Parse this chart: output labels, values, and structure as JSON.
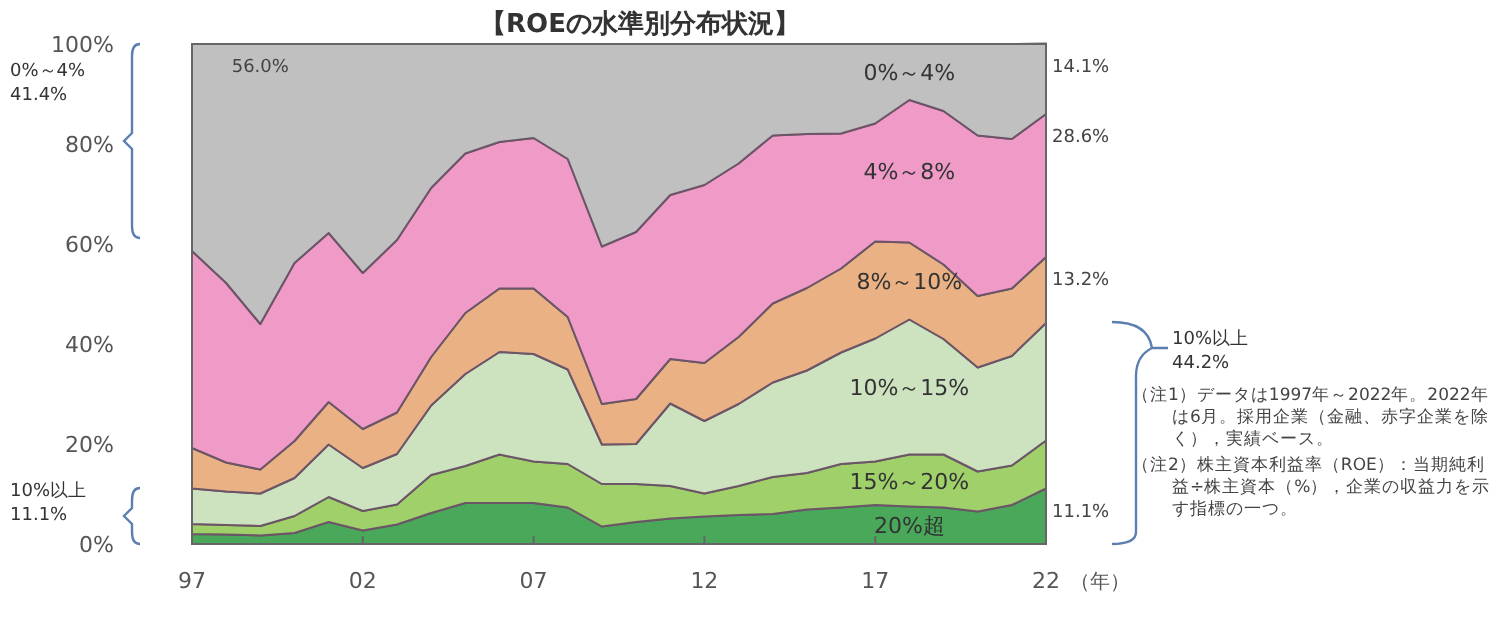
{
  "chart_data": {
    "type": "area",
    "stacked": true,
    "title": "【ROEの水準別分布状況】",
    "xlabel": "（年）",
    "x": [
      1997,
      1998,
      1999,
      2000,
      2001,
      2002,
      2003,
      2004,
      2005,
      2006,
      2007,
      2008,
      2009,
      2010,
      2011,
      2012,
      2013,
      2014,
      2015,
      2016,
      2017,
      2018,
      2019,
      2020,
      2021,
      2022
    ],
    "xlim": [
      1997,
      2022
    ],
    "xticks": [
      {
        "value": 1997,
        "label": "97"
      },
      {
        "value": 2002,
        "label": "02"
      },
      {
        "value": 2007,
        "label": "07"
      },
      {
        "value": 2012,
        "label": "12"
      },
      {
        "value": 2017,
        "label": "17"
      },
      {
        "value": 2022,
        "label": "22"
      }
    ],
    "ylim": [
      0,
      100
    ],
    "yticks": [
      {
        "value": 0,
        "label": "0%"
      },
      {
        "value": 20,
        "label": "20%"
      },
      {
        "value": 40,
        "label": "40%"
      },
      {
        "value": 60,
        "label": "60%"
      },
      {
        "value": 80,
        "label": "80%"
      },
      {
        "value": 100,
        "label": "100%"
      }
    ],
    "series": [
      {
        "name": "20%超",
        "color": "#4aa85a",
        "values": [
          2.0,
          1.9,
          1.7,
          2.2,
          4.4,
          2.7,
          3.9,
          6.2,
          8.2,
          8.2,
          8.2,
          7.3,
          3.5,
          4.4,
          5.1,
          5.5,
          5.8,
          6.0,
          6.9,
          7.3,
          7.8,
          7.5,
          7.3,
          6.5,
          7.8,
          11.1
        ],
        "value_labels": [
          null,
          null,
          null,
          null,
          null,
          null,
          null,
          null,
          null,
          null,
          null,
          null,
          null,
          null,
          null,
          null,
          null,
          null,
          null,
          null,
          null,
          null,
          null,
          null,
          null,
          "11.1%"
        ]
      },
      {
        "name": "15%～20%",
        "color": "#9fd06a",
        "values": [
          2.0,
          1.9,
          1.9,
          3.4,
          5.0,
          3.9,
          4.0,
          7.6,
          7.4,
          9.7,
          8.3,
          8.7,
          8.5,
          7.6,
          6.5,
          4.6,
          5.8,
          7.4,
          7.3,
          8.7,
          8.7,
          10.4,
          10.6,
          8.0,
          7.9,
          9.6
        ]
      },
      {
        "name": "10%～15%",
        "color": "#cde3c0",
        "values": [
          7.1,
          6.7,
          6.5,
          7.6,
          10.5,
          8.6,
          10.1,
          13.9,
          18.4,
          20.5,
          21.5,
          18.9,
          7.9,
          8.0,
          16.5,
          14.5,
          16.4,
          18.9,
          20.5,
          22.3,
          24.6,
          27.0,
          23.1,
          20.8,
          21.9,
          23.5
        ]
      },
      {
        "name": "8%～10%",
        "color": "#eab184",
        "values": [
          8.1,
          5.8,
          4.8,
          7.4,
          8.5,
          7.8,
          8.3,
          9.7,
          12.2,
          12.7,
          13.1,
          10.5,
          8.1,
          9.0,
          8.9,
          11.6,
          13.4,
          15.8,
          16.5,
          16.8,
          19.4,
          15.4,
          14.9,
          14.3,
          13.5,
          13.2
        ],
        "value_labels": [
          null,
          null,
          null,
          null,
          null,
          null,
          null,
          null,
          null,
          null,
          null,
          null,
          null,
          null,
          null,
          null,
          null,
          null,
          null,
          null,
          null,
          null,
          null,
          null,
          null,
          "13.2%"
        ]
      },
      {
        "name": "4%～8%",
        "color": "#f09ac8",
        "values": [
          39.4,
          35.9,
          29.1,
          35.6,
          33.8,
          31.2,
          34.5,
          33.8,
          31.9,
          29.3,
          30.1,
          31.6,
          31.5,
          33.4,
          32.8,
          35.6,
          34.7,
          33.6,
          30.8,
          27.0,
          23.6,
          28.5,
          30.7,
          32.1,
          29.9,
          28.6
        ],
        "value_labels": [
          null,
          null,
          null,
          null,
          null,
          null,
          null,
          null,
          null,
          null,
          null,
          null,
          null,
          null,
          null,
          null,
          null,
          null,
          null,
          null,
          null,
          null,
          null,
          null,
          null,
          "28.6%"
        ]
      },
      {
        "name": "0%～4%",
        "color": "#c0c0c0",
        "values": [
          41.4,
          47.8,
          56.0,
          43.8,
          37.8,
          45.8,
          39.2,
          28.8,
          21.9,
          19.6,
          18.8,
          23.0,
          40.5,
          37.6,
          30.2,
          28.2,
          23.9,
          18.3,
          18.0,
          17.9,
          15.9,
          11.2,
          13.4,
          18.3,
          19.0,
          14.1
        ],
        "value_labels": [
          null,
          null,
          "56.0%",
          null,
          null,
          null,
          null,
          null,
          null,
          null,
          null,
          null,
          null,
          null,
          null,
          null,
          null,
          null,
          null,
          null,
          null,
          null,
          null,
          null,
          null,
          "14.1%"
        ]
      }
    ],
    "annotations": [
      "0%～4%\n41.4%",
      "10%以上\n11.1%",
      "10%以上\n44.2%",
      "（注1）データは1997年～2022年。2022年は6月。採用企業（金融、赤字企業を除く），実績ベース。",
      "（注2）株主資本利益率（ROE）：当期純利益÷株主資本（%），企業の収益力を示す指標の一つ。"
    ]
  }
}
